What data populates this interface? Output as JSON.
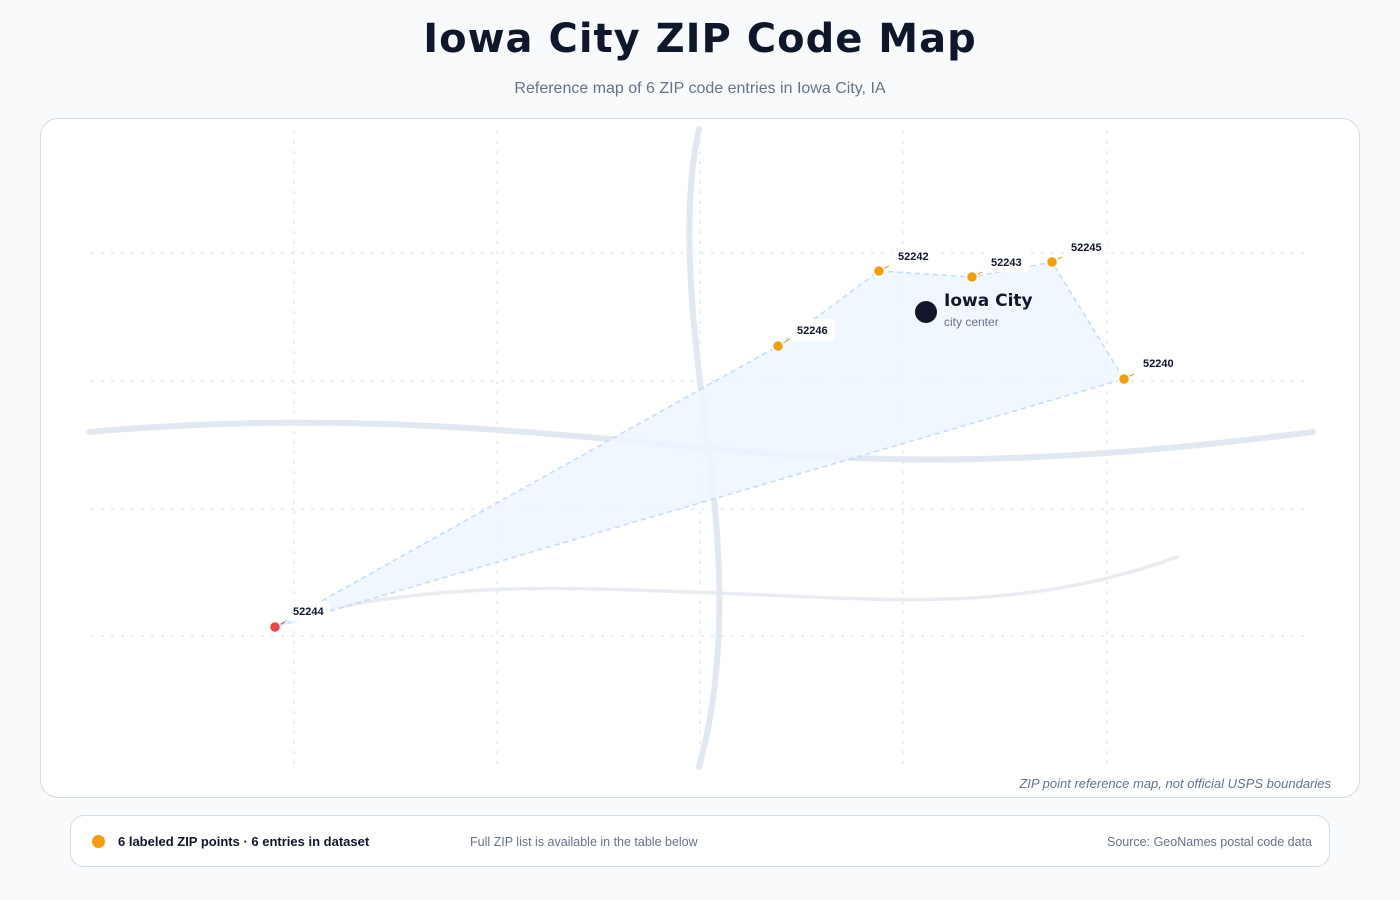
{
  "header": {
    "title": "Iowa City ZIP Code Map",
    "subtitle": "Reference map of 6 ZIP code entries in Iowa City, IA"
  },
  "map": {
    "city": {
      "name": "Iowa City",
      "sublabel": "city center"
    },
    "zip_points": [
      {
        "zip": "52240",
        "status": "labeled"
      },
      {
        "zip": "52242",
        "status": "labeled"
      },
      {
        "zip": "52243",
        "status": "labeled"
      },
      {
        "zip": "52244",
        "status": "outlier"
      },
      {
        "zip": "52245",
        "status": "labeled"
      },
      {
        "zip": "52246",
        "status": "labeled"
      }
    ],
    "disclaimer": "ZIP point reference map, not official USPS boundaries"
  },
  "legend": {
    "count_text": "6 labeled ZIP points · 6 entries in dataset",
    "note": "Full ZIP list is available in the table below",
    "source": "Source: GeoNames postal code data"
  },
  "colors": {
    "zip_point": "#f59e0b",
    "outlier_point": "#ef4444",
    "city_center": "#0f172a",
    "coverage_fill": "#eff6ff",
    "coverage_stroke": "#bfdbfe",
    "road": "#e2e8f0"
  }
}
